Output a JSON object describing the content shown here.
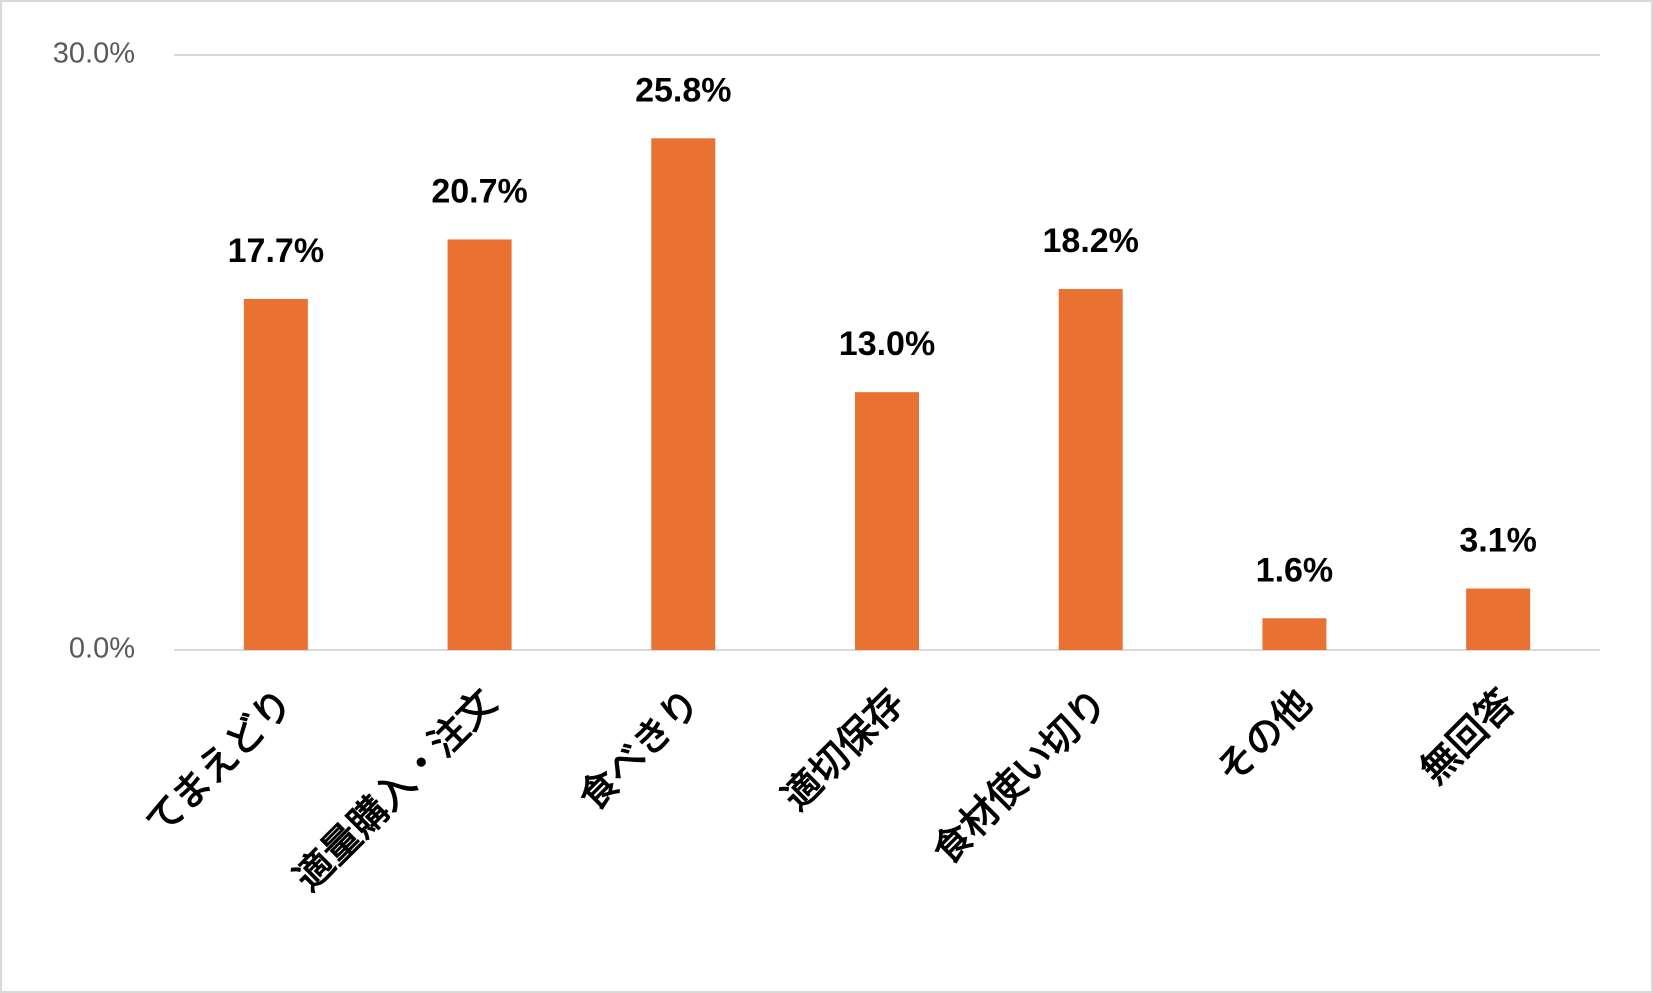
{
  "chart_data": {
    "type": "bar",
    "categories": [
      "てまえどり",
      "適量購入・注文",
      "食べきり",
      "適切保存",
      "食材使い切り",
      "その他",
      "無回答"
    ],
    "values": [
      17.7,
      20.7,
      25.8,
      13.0,
      18.2,
      1.6,
      3.1
    ],
    "value_labels": [
      "17.7%",
      "20.7%",
      "25.8%",
      "13.0%",
      "18.2%",
      "1.6%",
      "3.1%"
    ],
    "color": "#e97132",
    "ylim": [
      0,
      30
    ],
    "yticks": [
      {
        "value": 0,
        "label": "0.0%"
      },
      {
        "value": 30,
        "label": "30.0%"
      }
    ],
    "grid": true
  }
}
